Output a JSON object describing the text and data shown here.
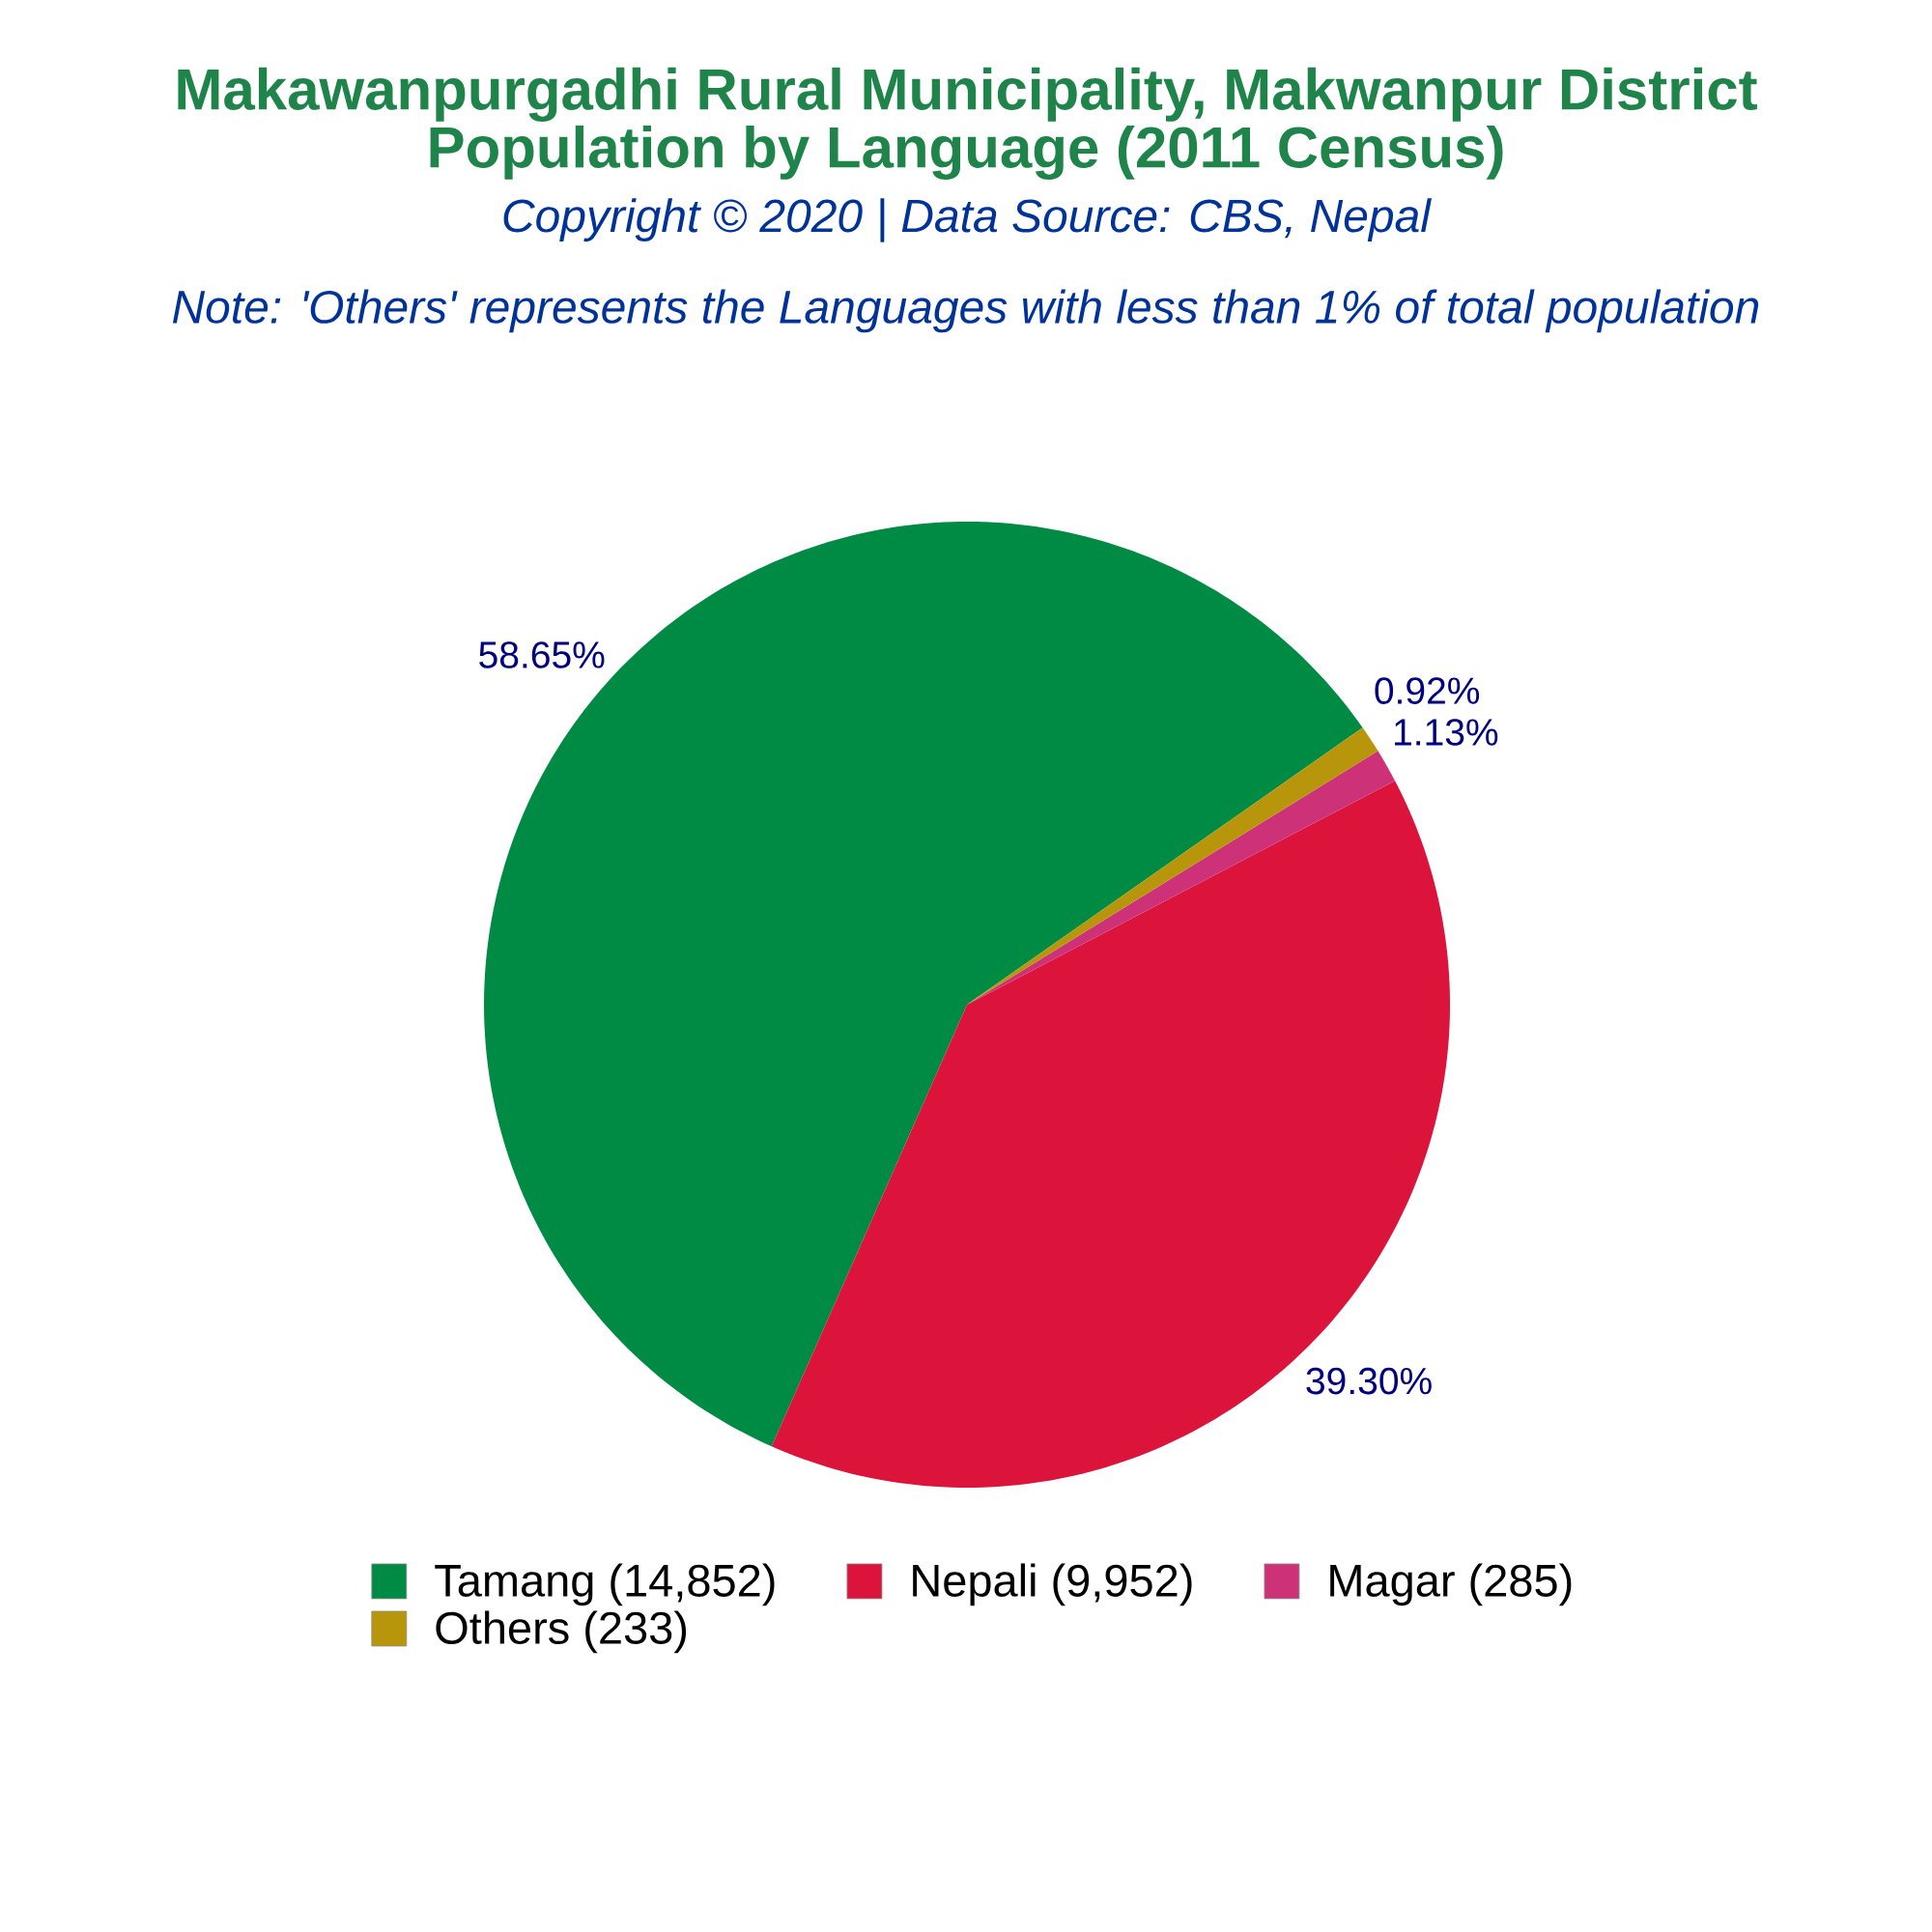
{
  "chart_data": {
    "type": "pie",
    "title": "Makawanpurgadhi Rural Municipality, Makwanpur District Population by Language (2011 Census)",
    "subtitle": "Copyright © 2020 | Data Source: CBS, Nepal",
    "annotations": [
      "Note: 'Others' represents the Languages with less than 1% of total population"
    ],
    "categories": [
      "Tamang (14,852)",
      "Nepali (9,952)",
      "Magar (285)",
      "Others (233)"
    ],
    "values": [
      58.65,
      39.3,
      1.13,
      0.92
    ],
    "value_labels": [
      "58.65%",
      "39.30%",
      "1.13%",
      "0.92%"
    ],
    "colors": [
      "#008b45",
      "#dc143c",
      "#cd3278",
      "#b8960b"
    ],
    "legend": "bottom"
  }
}
